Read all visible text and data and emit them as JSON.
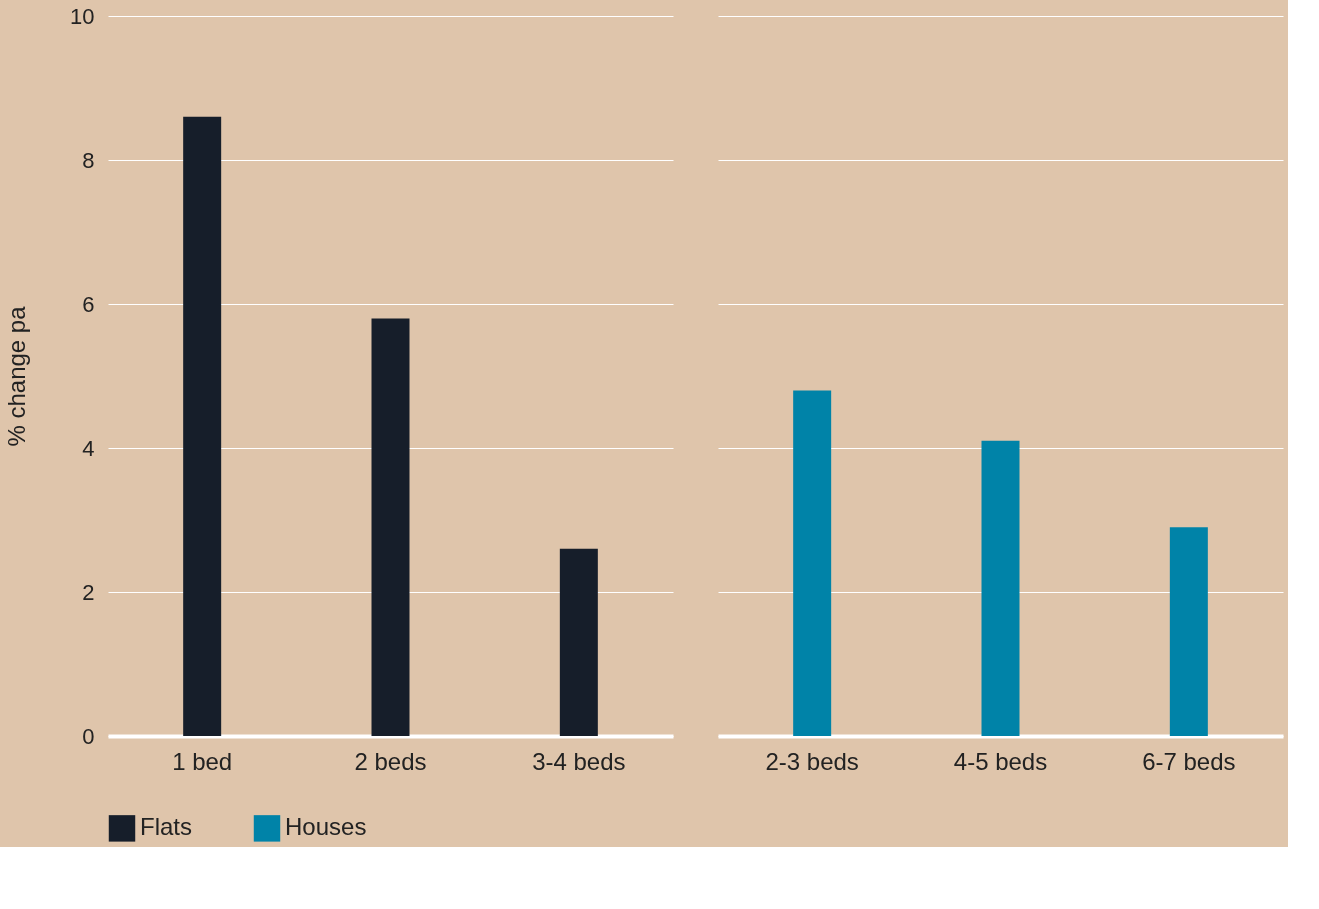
{
  "chart_data": [
    {
      "type": "bar",
      "categories": [
        "1 bed",
        "2 beds",
        "3-4 beds"
      ],
      "ylabel": "% change pa",
      "ylim": [
        0,
        10
      ],
      "yticks": [
        0,
        2,
        4,
        6,
        8,
        10
      ],
      "grid": "y",
      "legend": "bottom",
      "series": [
        {
          "name": "Flats",
          "color": "#161e2a",
          "values": [
            8.6,
            5.8,
            2.6
          ]
        }
      ]
    },
    {
      "type": "bar",
      "categories": [
        "2-3 beds",
        "4-5 beds",
        "6-7 beds"
      ],
      "ylim": [
        0,
        10
      ],
      "yticks": [
        0,
        2,
        4,
        6,
        8,
        10
      ],
      "grid": "y",
      "legend": "bottom",
      "tick_labels": "x",
      "series": [
        {
          "name": "Houses",
          "color": "#0083a8",
          "values": [
            4.8,
            4.1,
            2.9
          ]
        }
      ]
    }
  ]
}
